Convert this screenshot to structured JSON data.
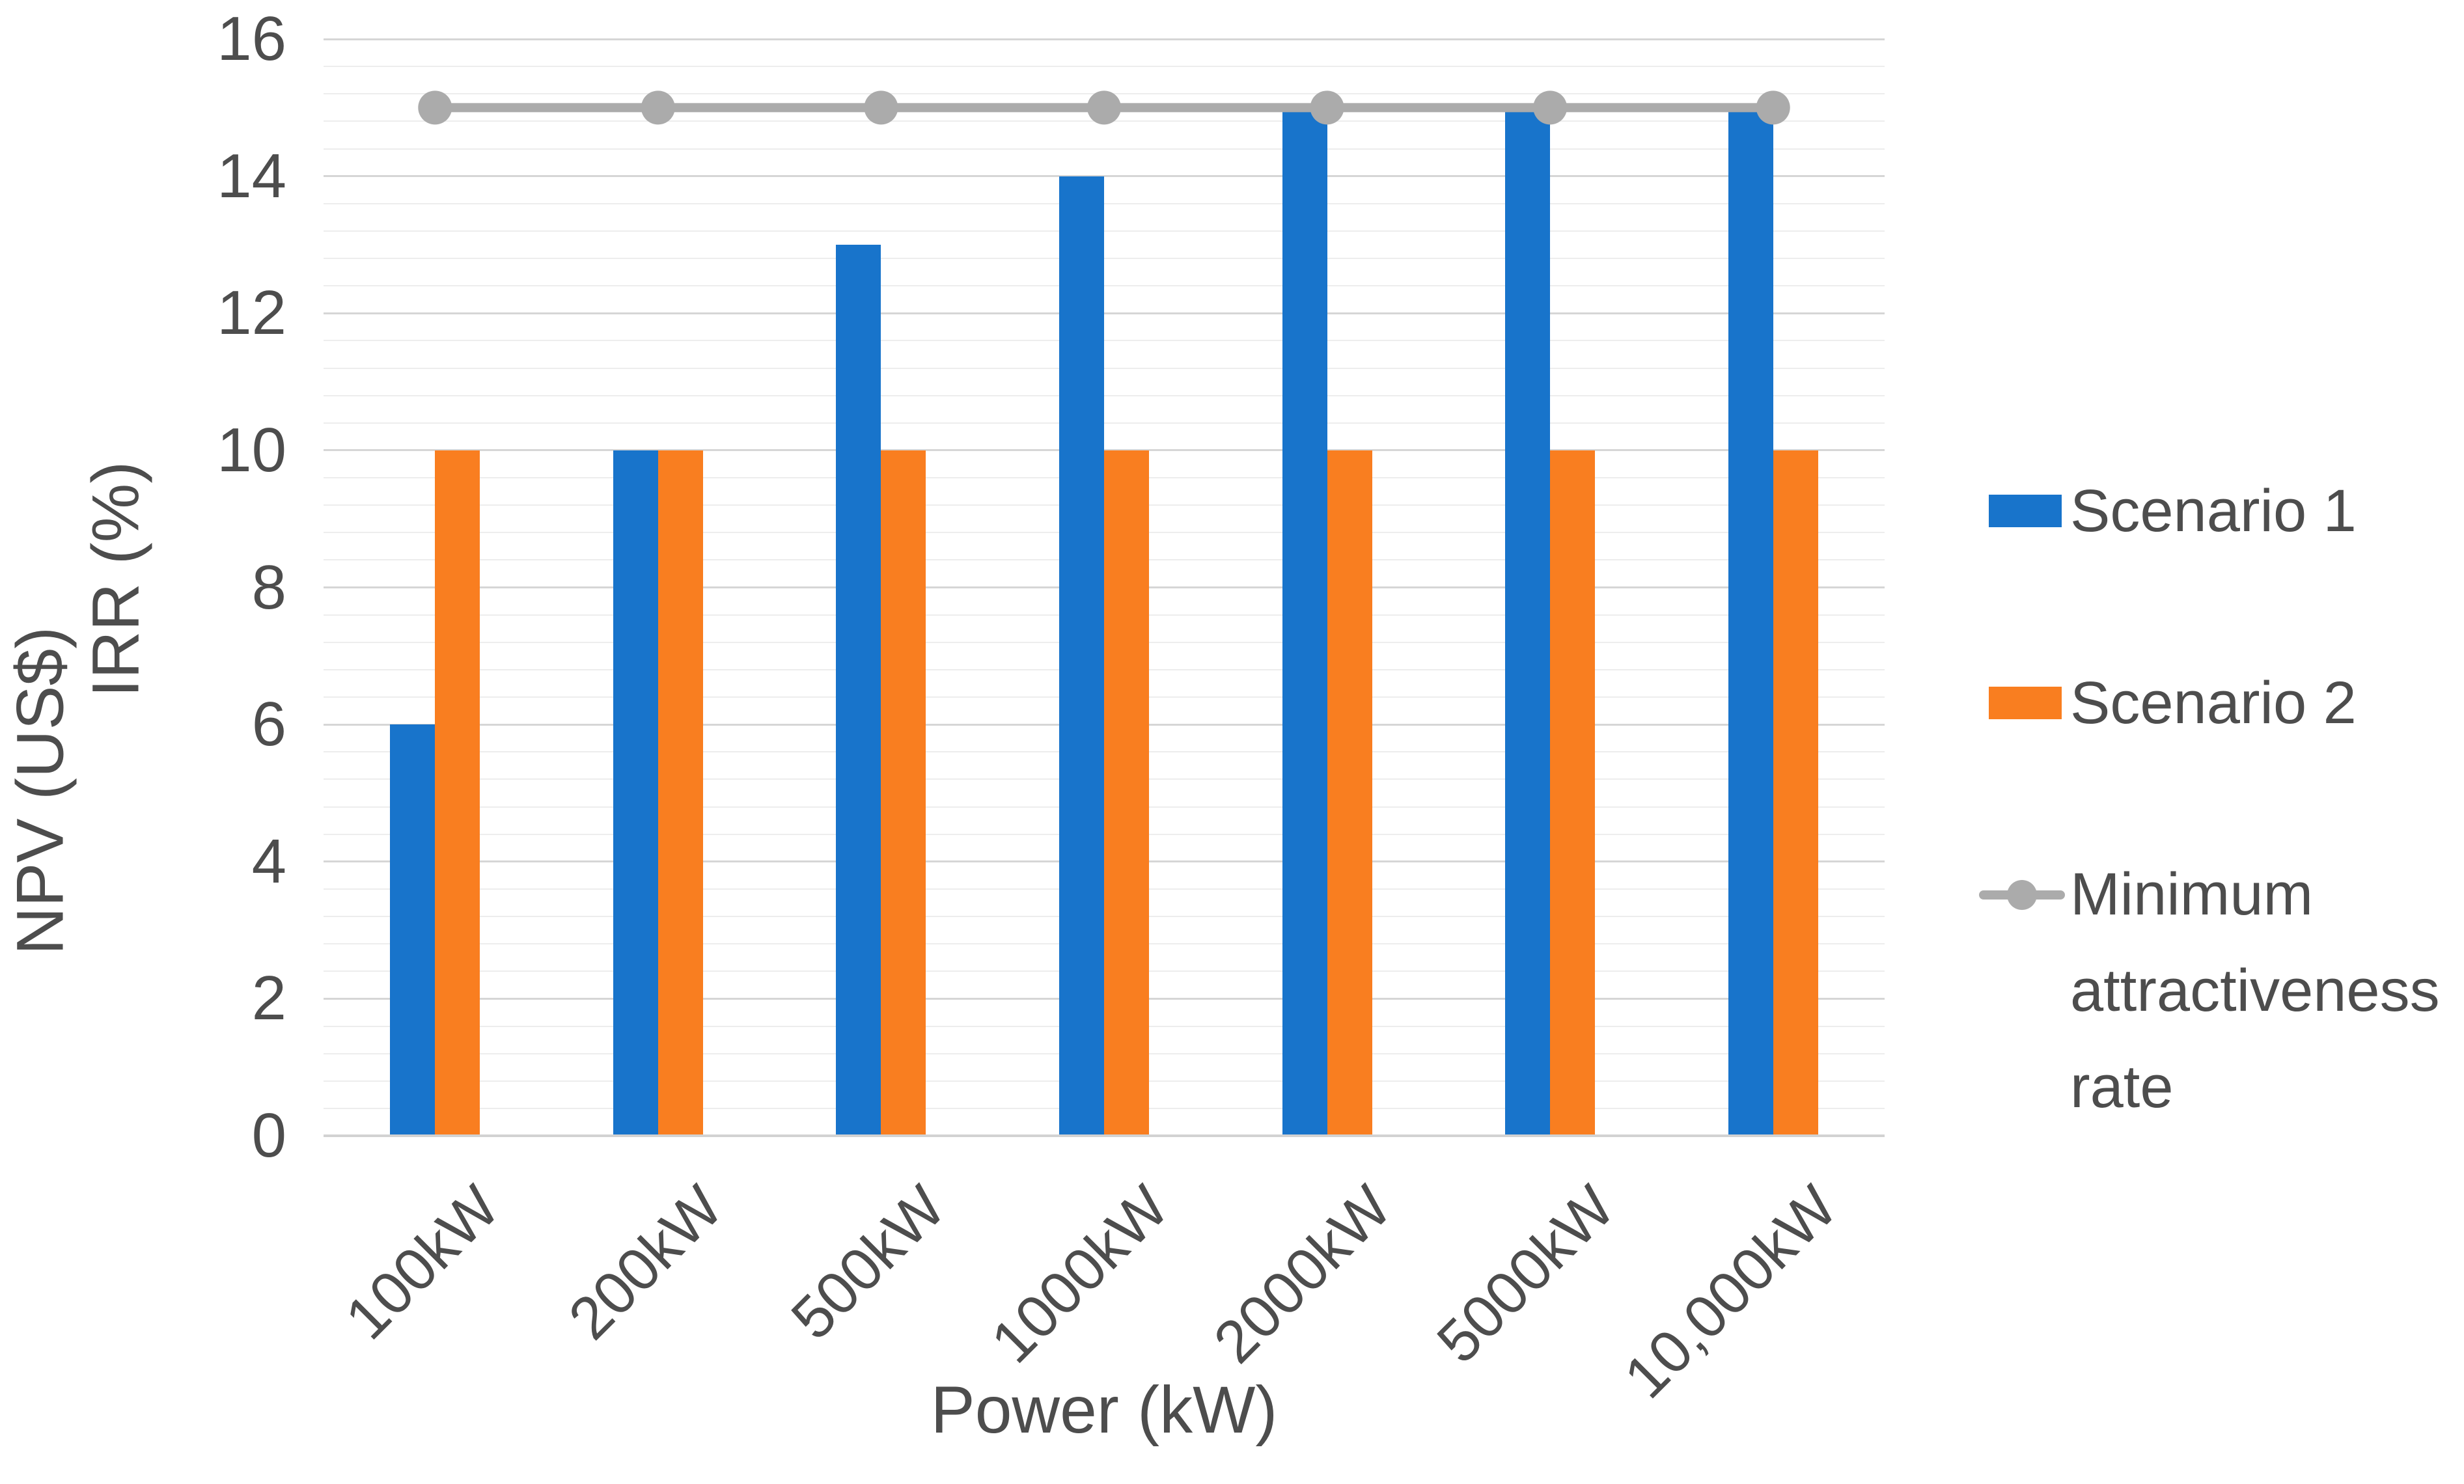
{
  "figure": {
    "background": "#FFFFFF",
    "text_color": "#4D4D4D",
    "grid_major_color": "#D6D6D6",
    "grid_minor_color": "#EDEDED",
    "axis_line_color": "#D2D2D2"
  },
  "chart_data": {
    "type": "bar",
    "subtype": "grouped-bars-with-line-overlay",
    "categories": [
      "100kW",
      "200kW",
      "500kW",
      "1000kW",
      "2000kW",
      "5000kW",
      "10,000kW"
    ],
    "series": [
      {
        "name": "Scenario 1",
        "type": "bar",
        "color": "#1874CB",
        "values": [
          6,
          10,
          13,
          14,
          15,
          15,
          15
        ]
      },
      {
        "name": "Scenario 2",
        "type": "bar",
        "color": "#F97E20",
        "values": [
          10,
          10,
          10,
          10,
          10,
          10,
          10
        ]
      },
      {
        "name": "Minimum attractiveness rate",
        "type": "line",
        "color": "#ABABAB",
        "values": [
          15,
          15,
          15,
          15,
          15,
          15,
          15
        ]
      }
    ],
    "xlabel": "Power (kW)",
    "ylabel_outer": "NPV (US$)",
    "ylabel_inner": "IRR (%)",
    "ylim": [
      0,
      16
    ],
    "y_major_unit": 2,
    "y_minor_unit": 0.4,
    "y_ticks": [
      "0",
      "2",
      "4",
      "6",
      "8",
      "10",
      "12",
      "14",
      "16"
    ],
    "grid": "horizontal",
    "legend_position": "right"
  }
}
